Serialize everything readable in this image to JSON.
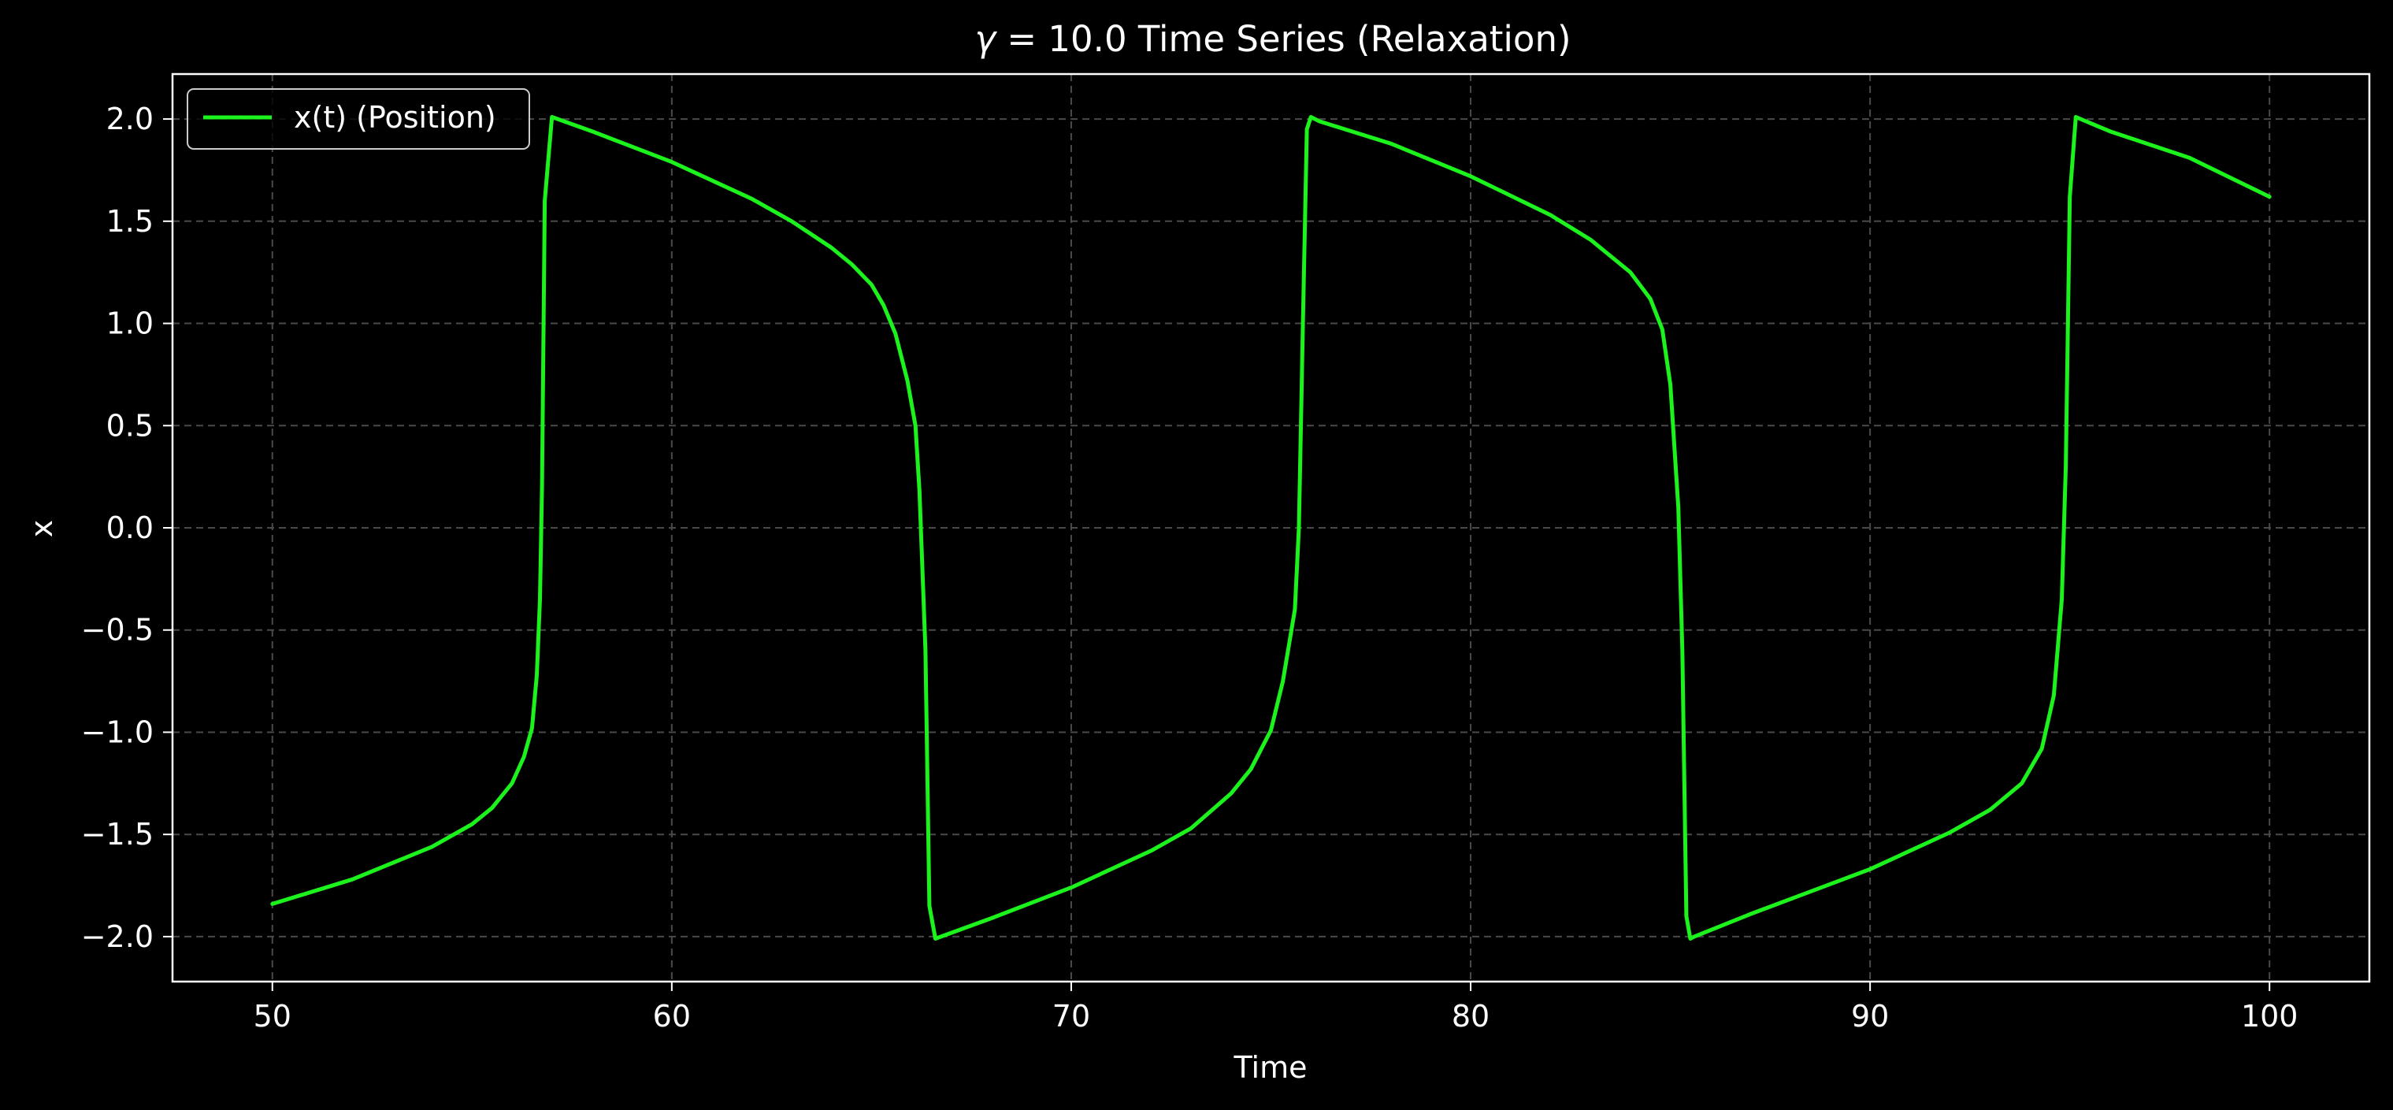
{
  "colors": {
    "background": "#000000",
    "line": "#1cf21c",
    "text": "#ffffff",
    "grid": "#4a4a4a"
  },
  "chart_data": {
    "type": "line",
    "title_prefix": "γ",
    "title_rest": " = 10.0 Time Series (Relaxation)",
    "xlabel": "Time",
    "ylabel": "x",
    "xlim": [
      47.5,
      102.5
    ],
    "ylim": [
      -2.22,
      2.22
    ],
    "x_ticks": [
      50,
      60,
      70,
      80,
      90,
      100
    ],
    "x_tick_labels": [
      "50",
      "60",
      "70",
      "80",
      "90",
      "100"
    ],
    "y_ticks": [
      2.0,
      1.5,
      1.0,
      0.5,
      0.0,
      -0.5,
      -1.0,
      -1.5,
      -2.0
    ],
    "y_tick_labels": [
      "2.0",
      "1.5",
      "1.0",
      "0.5",
      "0.0",
      "−0.5",
      "−1.0",
      "−1.5",
      "−2.0"
    ],
    "grid": true,
    "legend_position": "top-left",
    "series": [
      {
        "name": "x(t) (Position)",
        "color": "#1cf21c",
        "x": [
          50.0,
          52.0,
          54.0,
          55.0,
          55.5,
          56.0,
          56.3,
          56.5,
          56.62,
          56.7,
          56.75,
          56.82,
          57.0,
          58.0,
          60.0,
          62.0,
          63.0,
          64.0,
          64.5,
          65.0,
          65.3,
          65.6,
          65.9,
          66.1,
          66.2,
          66.35,
          66.45,
          66.6,
          68.0,
          70.0,
          72.0,
          73.0,
          74.0,
          74.5,
          75.0,
          75.3,
          75.6,
          75.7,
          75.8,
          75.9,
          76.0,
          76.2,
          78.0,
          80.0,
          82.0,
          83.0,
          84.0,
          84.5,
          84.8,
          85.0,
          85.2,
          85.3,
          85.4,
          85.5,
          85.6,
          87.0,
          90.0,
          92.0,
          93.0,
          93.8,
          94.3,
          94.6,
          94.8,
          94.9,
          95.0,
          95.15,
          96.0,
          98.0,
          100.0
        ],
        "y": [
          -1.84,
          -1.72,
          -1.56,
          -1.45,
          -1.37,
          -1.25,
          -1.12,
          -0.98,
          -0.72,
          -0.35,
          0.2,
          1.6,
          2.01,
          1.94,
          1.79,
          1.61,
          1.5,
          1.37,
          1.29,
          1.19,
          1.09,
          0.95,
          0.72,
          0.5,
          0.18,
          -0.6,
          -1.85,
          -2.01,
          -1.91,
          -1.76,
          -1.58,
          -1.47,
          -1.3,
          -1.18,
          -0.99,
          -0.75,
          -0.4,
          0.0,
          1.0,
          1.95,
          2.01,
          1.99,
          1.88,
          1.72,
          1.53,
          1.41,
          1.25,
          1.12,
          0.97,
          0.7,
          0.1,
          -0.6,
          -1.9,
          -2.01,
          -2.0,
          -1.89,
          -1.67,
          -1.49,
          -1.38,
          -1.25,
          -1.08,
          -0.82,
          -0.35,
          0.3,
          1.62,
          2.01,
          1.94,
          1.81,
          1.62
        ]
      }
    ]
  }
}
